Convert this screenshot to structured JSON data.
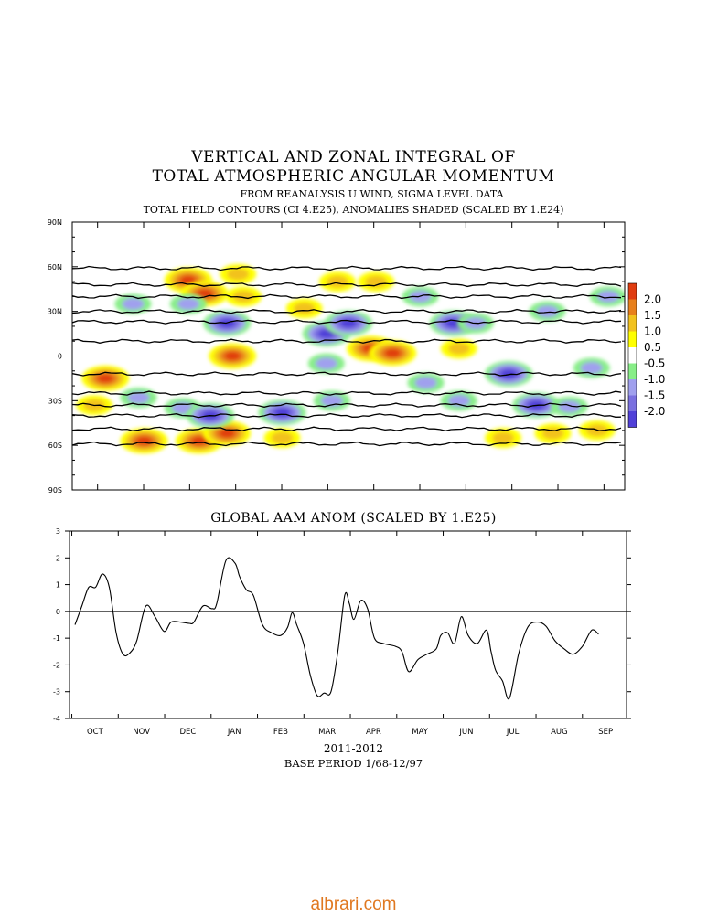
{
  "header": {
    "title_line1": "VERTICAL AND ZONAL INTEGRAL OF",
    "title_line2": "TOTAL ATMOSPHERIC ANGULAR MOMENTUM",
    "subtitle1": "FROM REANALYSIS U WIND,  SIGMA LEVEL DATA",
    "subtitle2": "TOTAL FIELD CONTOURS (CI 4.E25),  ANOMALIES SHADED (SCALED BY 1.E24)"
  },
  "watermark": "albrari.com",
  "footer": {
    "years": "2011-2012",
    "base_period": "BASE PERIOD  1/68-12/97"
  },
  "colors": {
    "lvl_2_0": "#e03c10",
    "lvl_1_5": "#e8801c",
    "lvl_1_0": "#f2c21e",
    "lvl_0_5": "#ffff00",
    "lvl_m0_5": "#88ee88",
    "lvl_m1_0": "#a0a0ee",
    "lvl_m1_5": "#7a70e0",
    "lvl_m2_0": "#5040d8"
  },
  "chart_data": [
    {
      "type": "heatmap",
      "title": "VERTICAL AND ZONAL INTEGRAL OF TOTAL ATMOSPHERIC ANGULAR MOMENTUM",
      "yticks": [
        "90N",
        "60N",
        "30N",
        "0",
        "30S",
        "60S",
        "90S"
      ],
      "ylim": [
        -90,
        90
      ],
      "months": [
        "OCT",
        "NOV",
        "DEC",
        "JAN",
        "FEB",
        "MAR",
        "APR",
        "MAY",
        "JUN",
        "JUL",
        "AUG",
        "SEP"
      ],
      "legend_labels": [
        "2.0",
        "1.5",
        "1.0",
        "0.5",
        "-0.5",
        "-1.0",
        "-1.5",
        "-2.0"
      ],
      "contour_latitudes": [
        59,
        48,
        40,
        30,
        23,
        10,
        -12,
        -25,
        -33,
        -40,
        -49,
        -59
      ],
      "anomaly_blobs": [
        {
          "t": 0.06,
          "lat": -15,
          "lvl": 2
        },
        {
          "t": 0.13,
          "lat": -57,
          "lvl": 2
        },
        {
          "t": 0.21,
          "lat": 51,
          "lvl": 2
        },
        {
          "t": 0.24,
          "lat": 42,
          "lvl": 2
        },
        {
          "t": 0.23,
          "lat": -57,
          "lvl": 2
        },
        {
          "t": 0.3,
          "lat": 55,
          "lvl": 1
        },
        {
          "t": 0.29,
          "lat": 0,
          "lvl": 2
        },
        {
          "t": 0.28,
          "lat": -52,
          "lvl": 2
        },
        {
          "t": 0.38,
          "lat": -55,
          "lvl": 1
        },
        {
          "t": 0.42,
          "lat": 32,
          "lvl": 1
        },
        {
          "t": 0.48,
          "lat": 50,
          "lvl": 1
        },
        {
          "t": 0.55,
          "lat": 50,
          "lvl": 1
        },
        {
          "t": 0.54,
          "lat": 5,
          "lvl": 2
        },
        {
          "t": 0.58,
          "lat": 2,
          "lvl": 2
        },
        {
          "t": 0.31,
          "lat": 40,
          "lvl": 0
        },
        {
          "t": 0.7,
          "lat": 5,
          "lvl": 0
        },
        {
          "t": 0.78,
          "lat": -55,
          "lvl": 1
        },
        {
          "t": 0.87,
          "lat": -52,
          "lvl": 1
        },
        {
          "t": 0.95,
          "lat": -50,
          "lvl": 0
        },
        {
          "t": 0.04,
          "lat": -33,
          "lvl": 1
        },
        {
          "t": 0.11,
          "lat": 35,
          "lvl": -1
        },
        {
          "t": 0.21,
          "lat": 35,
          "lvl": -1
        },
        {
          "t": 0.28,
          "lat": 22,
          "lvl": -2
        },
        {
          "t": 0.12,
          "lat": -28,
          "lvl": -1
        },
        {
          "t": 0.2,
          "lat": -35,
          "lvl": -1
        },
        {
          "t": 0.25,
          "lat": -40,
          "lvl": -2
        },
        {
          "t": 0.38,
          "lat": -38,
          "lvl": -2
        },
        {
          "t": 0.46,
          "lat": 15,
          "lvl": -2
        },
        {
          "t": 0.5,
          "lat": 22,
          "lvl": -2
        },
        {
          "t": 0.46,
          "lat": -5,
          "lvl": -1
        },
        {
          "t": 0.47,
          "lat": -30,
          "lvl": -1
        },
        {
          "t": 0.63,
          "lat": 40,
          "lvl": -1
        },
        {
          "t": 0.64,
          "lat": -18,
          "lvl": -1
        },
        {
          "t": 0.69,
          "lat": 22,
          "lvl": -2
        },
        {
          "t": 0.73,
          "lat": 22,
          "lvl": -1
        },
        {
          "t": 0.79,
          "lat": -12,
          "lvl": -2
        },
        {
          "t": 0.84,
          "lat": -33,
          "lvl": -2
        },
        {
          "t": 0.9,
          "lat": -34,
          "lvl": -1
        },
        {
          "t": 0.94,
          "lat": -8,
          "lvl": -1
        },
        {
          "t": 0.97,
          "lat": 40,
          "lvl": -1
        },
        {
          "t": 0.7,
          "lat": -30,
          "lvl": -1
        },
        {
          "t": 0.86,
          "lat": 30,
          "lvl": -1
        }
      ]
    },
    {
      "type": "line",
      "title": "GLOBAL AAM ANOM (SCALED BY 1.E25)",
      "xlabel": "2011-2012",
      "ylim": [
        -4,
        3
      ],
      "yticks": [
        3,
        2,
        1,
        0,
        -1,
        -2,
        -3,
        -4
      ],
      "months": [
        "OCT",
        "NOV",
        "DEC",
        "JAN",
        "FEB",
        "MAR",
        "APR",
        "MAY",
        "JUN",
        "JUL",
        "AUG",
        "SEP"
      ],
      "x_month_index": [
        0,
        0.15,
        0.3,
        0.45,
        0.6,
        0.75,
        0.9,
        1.05,
        1.2,
        1.35,
        1.55,
        1.75,
        1.95,
        2.1,
        2.3,
        2.5,
        2.6,
        2.8,
        3.0,
        3.1,
        3.3,
        3.5,
        3.6,
        3.75,
        3.9,
        4.1,
        4.3,
        4.5,
        4.65,
        4.75,
        4.85,
        5.0,
        5.15,
        5.3,
        5.45,
        5.6,
        5.75,
        5.9,
        6.0,
        6.1,
        6.25,
        6.4,
        6.55,
        6.75,
        7.0,
        7.15,
        7.3,
        7.5,
        7.7,
        7.9,
        8.0,
        8.15,
        8.3,
        8.45,
        8.6,
        8.8,
        9.0,
        9.1,
        9.2,
        9.35,
        9.5,
        9.7,
        9.9,
        10.1,
        10.3,
        10.5,
        10.7,
        10.9,
        11.1,
        11.3,
        11.45
      ],
      "y": [
        -0.5,
        0.2,
        0.9,
        0.9,
        1.4,
        0.9,
        -0.8,
        -1.6,
        -1.55,
        -1.1,
        0.2,
        -0.2,
        -0.75,
        -0.4,
        -0.4,
        -0.45,
        -0.4,
        0.2,
        0.1,
        0.3,
        1.9,
        1.8,
        1.3,
        0.8,
        0.6,
        -0.5,
        -0.8,
        -0.9,
        -0.6,
        -0.05,
        -0.5,
        -1.2,
        -2.4,
        -3.15,
        -3.05,
        -3.0,
        -1.5,
        0.6,
        0.3,
        -0.3,
        0.4,
        0.1,
        -1.0,
        -1.2,
        -1.3,
        -1.5,
        -2.25,
        -1.8,
        -1.6,
        -1.4,
        -0.9,
        -0.8,
        -1.2,
        -0.2,
        -0.9,
        -1.2,
        -0.7,
        -1.5,
        -2.2,
        -2.6,
        -3.25,
        -1.6,
        -0.6,
        -0.4,
        -0.55,
        -1.1,
        -1.4,
        -1.6,
        -1.3,
        -0.7,
        -0.85
      ]
    }
  ]
}
